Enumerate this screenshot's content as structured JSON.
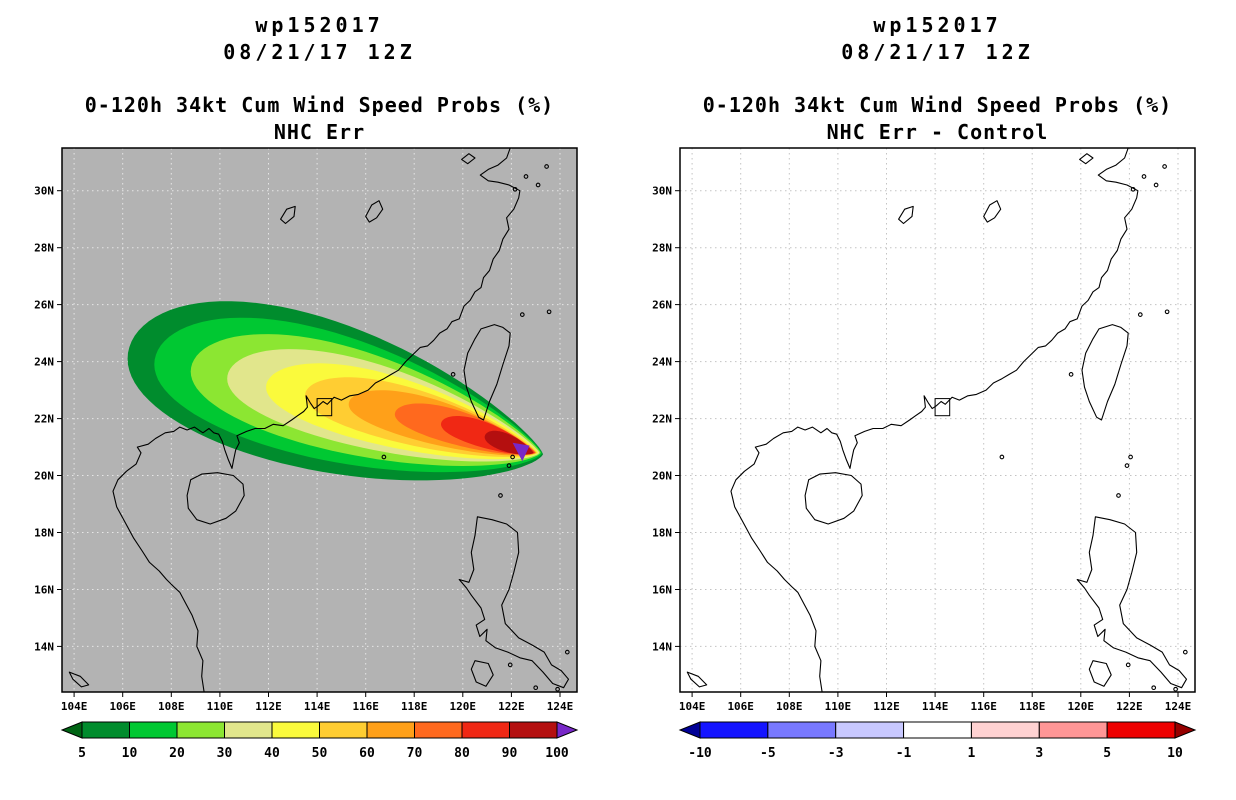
{
  "page": {
    "background_color": "#ffffff"
  },
  "chart_data": [
    {
      "type": "filled_contour_map",
      "panel": "left",
      "titles": {
        "storm_id": "wp152017",
        "init_time": "08/21/17 12Z",
        "product": "0-120h 34kt Cum Wind Speed Probs (%)",
        "experiment": "NHC Err"
      },
      "map_background": "#b3b3b3",
      "grid_color": "#e6e6e6",
      "lon_range": [
        103.5,
        124.7
      ],
      "lat_range": [
        12.4,
        31.5
      ],
      "x_ticks": {
        "lons": [
          104,
          106,
          108,
          110,
          112,
          114,
          116,
          118,
          120,
          122,
          124
        ],
        "labels": [
          "104E",
          "106E",
          "108E",
          "110E",
          "112E",
          "114E",
          "116E",
          "118E",
          "120E",
          "122E",
          "124E"
        ]
      },
      "y_ticks": {
        "lats": [
          14,
          16,
          18,
          20,
          22,
          24,
          26,
          28,
          30
        ],
        "labels": [
          "14N",
          "16N",
          "18N",
          "20N",
          "22N",
          "24N",
          "26N",
          "28N",
          "30N"
        ]
      },
      "marker_box": {
        "lon_min": 114.0,
        "lat_min": 22.1,
        "lon_max": 114.6,
        "lat_max": 22.7
      },
      "contour_levels_pct": [
        5,
        10,
        20,
        30,
        40,
        50,
        60,
        70,
        80,
        90,
        100
      ],
      "contours": [
        {
          "level": 5,
          "color": "#008c2d",
          "west_lon": 106.2,
          "west_center_lat": 24.1,
          "tip_lon": 123.3,
          "tip_lat": 20.75,
          "half_width_deg": 2.75
        },
        {
          "level": 10,
          "color": "#00c832",
          "west_lon": 107.3,
          "west_center_lat": 23.9,
          "tip_lon": 123.25,
          "tip_lat": 20.78,
          "half_width_deg": 2.3
        },
        {
          "level": 20,
          "color": "#8ce632",
          "west_lon": 108.8,
          "west_center_lat": 23.65,
          "tip_lon": 123.2,
          "tip_lat": 20.8,
          "half_width_deg": 1.9
        },
        {
          "level": 30,
          "color": "#e1e68c",
          "west_lon": 110.3,
          "west_center_lat": 23.4,
          "tip_lon": 123.15,
          "tip_lat": 20.8,
          "half_width_deg": 1.55
        },
        {
          "level": 40,
          "color": "#fafa3c",
          "west_lon": 111.9,
          "west_center_lat": 23.1,
          "tip_lon": 123.1,
          "tip_lat": 20.8,
          "half_width_deg": 1.28
        },
        {
          "level": 50,
          "color": "#ffcd32",
          "west_lon": 113.5,
          "west_center_lat": 22.8,
          "tip_lon": 123.05,
          "tip_lat": 20.8,
          "half_width_deg": 1.02
        },
        {
          "level": 60,
          "color": "#ffa019",
          "west_lon": 115.3,
          "west_center_lat": 22.5,
          "tip_lon": 123.0,
          "tip_lat": 20.8,
          "half_width_deg": 0.8
        },
        {
          "level": 70,
          "color": "#ff691e",
          "west_lon": 117.2,
          "west_center_lat": 22.15,
          "tip_lon": 123.0,
          "tip_lat": 20.8,
          "half_width_deg": 0.62
        },
        {
          "level": 80,
          "color": "#f02814",
          "west_lon": 119.1,
          "west_center_lat": 21.8,
          "tip_lon": 122.95,
          "tip_lat": 20.8,
          "half_width_deg": 0.47
        },
        {
          "level": 90,
          "color": "#b40f0f",
          "west_lon": 120.9,
          "west_center_lat": 21.35,
          "tip_lon": 122.9,
          "tip_lat": 20.8,
          "half_width_deg": 0.33
        }
      ],
      "max_prob_marker": {
        "color": "#7828c8",
        "points": [
          [
            122.05,
            21.15
          ],
          [
            122.75,
            21.05
          ],
          [
            122.45,
            20.5
          ]
        ]
      },
      "colorbar": {
        "labels": [
          "5",
          "10",
          "20",
          "30",
          "40",
          "50",
          "60",
          "70",
          "80",
          "90",
          "100"
        ],
        "segment_colors": [
          "#006414",
          "#008c2d",
          "#00c832",
          "#8ce632",
          "#e1e68c",
          "#fafa3c",
          "#ffcd32",
          "#ffa019",
          "#ff691e",
          "#f02814",
          "#b40f0f",
          "#7828c8"
        ]
      }
    },
    {
      "type": "filled_contour_map",
      "panel": "right",
      "titles": {
        "storm_id": "wp152017",
        "init_time": "08/21/17 12Z",
        "product": "0-120h 34kt Cum Wind Speed Probs (%)",
        "experiment": "NHC Err - Control"
      },
      "map_background": "#ffffff",
      "grid_color": "#c3c3c3",
      "lon_range": [
        103.5,
        124.7
      ],
      "lat_range": [
        12.4,
        31.5
      ],
      "x_ticks": {
        "lons": [
          104,
          106,
          108,
          110,
          112,
          114,
          116,
          118,
          120,
          122,
          124
        ],
        "labels": [
          "104E",
          "106E",
          "108E",
          "110E",
          "112E",
          "114E",
          "116E",
          "118E",
          "120E",
          "122E",
          "124E"
        ]
      },
      "y_ticks": {
        "lats": [
          14,
          16,
          18,
          20,
          22,
          24,
          26,
          28,
          30
        ],
        "labels": [
          "14N",
          "16N",
          "18N",
          "20N",
          "22N",
          "24N",
          "26N",
          "28N",
          "30N"
        ]
      },
      "marker_box": {
        "lon_min": 114.0,
        "lat_min": 22.1,
        "lon_max": 114.6,
        "lat_max": 22.7
      },
      "contour_levels_pct": [],
      "contours": [],
      "colorbar": {
        "labels": [
          "-10",
          "-5",
          "-3",
          "-1",
          "1",
          "3",
          "5",
          "10"
        ],
        "segment_colors": [
          "#000096",
          "#1414ff",
          "#7878ff",
          "#c8c8ff",
          "#ffffff",
          "#ffd2d2",
          "#ff9696",
          "#ee0000",
          "#960000"
        ]
      }
    }
  ]
}
